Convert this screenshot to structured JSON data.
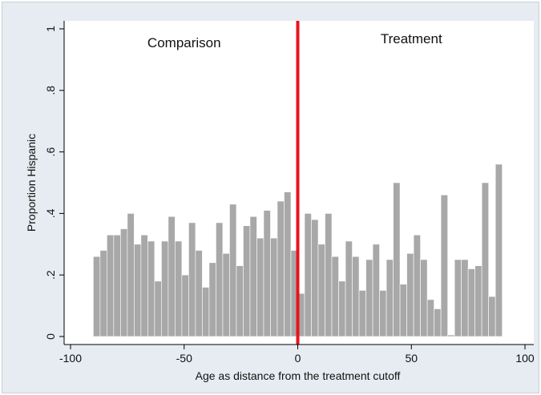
{
  "chart_data": {
    "type": "bar",
    "title": "",
    "xlabel": "Age as distance from the treatment cutoff",
    "ylabel": "Proportion Hispanic",
    "xlim": [
      -100,
      100
    ],
    "ylim": [
      0,
      1
    ],
    "xticks": [
      -100,
      -50,
      0,
      50,
      100
    ],
    "xtick_labels": [
      "-100",
      "-50",
      "0",
      "50",
      "100"
    ],
    "yticks": [
      0,
      0.2,
      0.4,
      0.6,
      0.8,
      1
    ],
    "ytick_labels": [
      "0",
      ".2",
      ".4",
      ".6",
      ".8",
      "1"
    ],
    "grid": false,
    "bar_color": "#a8a8a8",
    "cutoff_line": {
      "x": 0,
      "color": "#e8141c"
    },
    "annotations": [
      {
        "text": "Comparison",
        "x": -50,
        "y": 0.97
      },
      {
        "text": "Treatment",
        "x": 50,
        "y": 0.98
      }
    ],
    "bin_width": 3,
    "bins": [
      {
        "x": -88.5,
        "y": 0.26
      },
      {
        "x": -85.5,
        "y": 0.28
      },
      {
        "x": -82.5,
        "y": 0.33
      },
      {
        "x": -79.5,
        "y": 0.33
      },
      {
        "x": -76.5,
        "y": 0.35
      },
      {
        "x": -73.5,
        "y": 0.4
      },
      {
        "x": -70.5,
        "y": 0.3
      },
      {
        "x": -67.5,
        "y": 0.33
      },
      {
        "x": -64.5,
        "y": 0.31
      },
      {
        "x": -61.5,
        "y": 0.18
      },
      {
        "x": -58.5,
        "y": 0.31
      },
      {
        "x": -55.5,
        "y": 0.39
      },
      {
        "x": -52.5,
        "y": 0.31
      },
      {
        "x": -49.5,
        "y": 0.2
      },
      {
        "x": -46.5,
        "y": 0.37
      },
      {
        "x": -43.5,
        "y": 0.28
      },
      {
        "x": -40.5,
        "y": 0.16
      },
      {
        "x": -37.5,
        "y": 0.24
      },
      {
        "x": -34.5,
        "y": 0.37
      },
      {
        "x": -31.5,
        "y": 0.27
      },
      {
        "x": -28.5,
        "y": 0.43
      },
      {
        "x": -25.5,
        "y": 0.23
      },
      {
        "x": -22.5,
        "y": 0.36
      },
      {
        "x": -19.5,
        "y": 0.39
      },
      {
        "x": -16.5,
        "y": 0.32
      },
      {
        "x": -13.5,
        "y": 0.41
      },
      {
        "x": -10.5,
        "y": 0.32
      },
      {
        "x": -7.5,
        "y": 0.44
      },
      {
        "x": -4.5,
        "y": 0.47
      },
      {
        "x": -1.5,
        "y": 0.28
      },
      {
        "x": 1.5,
        "y": 0.14
      },
      {
        "x": 4.5,
        "y": 0.4
      },
      {
        "x": 7.5,
        "y": 0.38
      },
      {
        "x": 10.5,
        "y": 0.3
      },
      {
        "x": 13.5,
        "y": 0.4
      },
      {
        "x": 16.5,
        "y": 0.26
      },
      {
        "x": 19.5,
        "y": 0.18
      },
      {
        "x": 22.5,
        "y": 0.31
      },
      {
        "x": 25.5,
        "y": 0.26
      },
      {
        "x": 28.5,
        "y": 0.15
      },
      {
        "x": 31.5,
        "y": 0.25
      },
      {
        "x": 34.5,
        "y": 0.3
      },
      {
        "x": 37.5,
        "y": 0.15
      },
      {
        "x": 40.5,
        "y": 0.25
      },
      {
        "x": 43.5,
        "y": 0.5
      },
      {
        "x": 46.5,
        "y": 0.17
      },
      {
        "x": 49.5,
        "y": 0.27
      },
      {
        "x": 52.5,
        "y": 0.33
      },
      {
        "x": 55.5,
        "y": 0.25
      },
      {
        "x": 58.5,
        "y": 0.12
      },
      {
        "x": 61.5,
        "y": 0.09
      },
      {
        "x": 64.5,
        "y": 0.46
      },
      {
        "x": 67.5,
        "y": 0.005
      },
      {
        "x": 70.5,
        "y": 0.25
      },
      {
        "x": 73.5,
        "y": 0.25
      },
      {
        "x": 76.5,
        "y": 0.22
      },
      {
        "x": 79.5,
        "y": 0.23
      },
      {
        "x": 82.5,
        "y": 0.5
      },
      {
        "x": 85.5,
        "y": 0.13
      },
      {
        "x": 88.5,
        "y": 0.56
      }
    ]
  }
}
